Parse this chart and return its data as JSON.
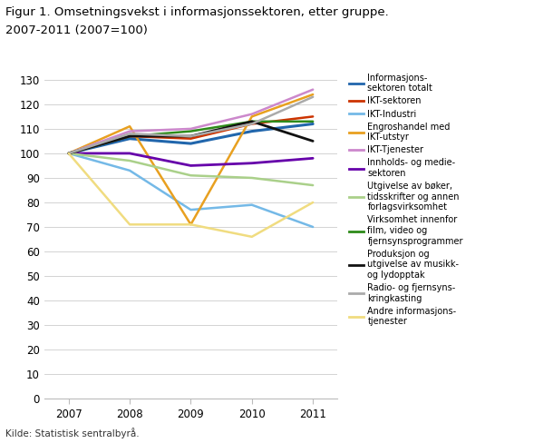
{
  "title_line1": "Figur 1. Omsetningsvekst i informasjonssektoren, etter gruppe.",
  "title_line2": "2007-2011 (2007=100)",
  "years": [
    2007,
    2008,
    2009,
    2010,
    2011
  ],
  "ylim": [
    0,
    130
  ],
  "yticks": [
    0,
    10,
    20,
    30,
    40,
    50,
    60,
    70,
    80,
    90,
    100,
    110,
    120,
    130
  ],
  "source": "Kilde: Statistisk sentralbyrå.",
  "series": [
    {
      "label": "Informasjons-\nsektoren totalt",
      "color": "#2166ac",
      "values": [
        100,
        106,
        104,
        109,
        112
      ],
      "linewidth": 2.2
    },
    {
      "label": "IKT-sektoren",
      "color": "#cc3300",
      "values": [
        100,
        107,
        106,
        112,
        115
      ],
      "linewidth": 1.8
    },
    {
      "label": "IKT-Industri",
      "color": "#74b9e7",
      "values": [
        100,
        93,
        77,
        79,
        70
      ],
      "linewidth": 1.8
    },
    {
      "label": "Engroshandel med\nIKT-utstyr",
      "color": "#e8a020",
      "values": [
        100,
        111,
        71,
        115,
        124
      ],
      "linewidth": 1.8
    },
    {
      "label": "IKT-Tjenester",
      "color": "#cc88cc",
      "values": [
        100,
        109,
        110,
        116,
        126
      ],
      "linewidth": 1.8
    },
    {
      "label": "Innholds- og medie-\nsektoren",
      "color": "#6600aa",
      "values": [
        100,
        100,
        95,
        96,
        98
      ],
      "linewidth": 2.0
    },
    {
      "label": "Utgivelse av bøker,\ntidsskrifter og annen\nforlagsvirksomhet",
      "color": "#aad08a",
      "values": [
        100,
        97,
        91,
        90,
        87
      ],
      "linewidth": 1.8
    },
    {
      "label": "Virksomhet innenfor\nfilm, video og\nfjernsynsprogrammer",
      "color": "#2e8b1a",
      "values": [
        100,
        107,
        109,
        113,
        113
      ],
      "linewidth": 1.8
    },
    {
      "label": "Produksjon og\nutgivelse av musikk-\nog lydopptak",
      "color": "#111111",
      "values": [
        100,
        107,
        107,
        113,
        105
      ],
      "linewidth": 2.0
    },
    {
      "label": "Radio- og fjernsyns-\nkringkasting",
      "color": "#aaaaaa",
      "values": [
        100,
        108,
        107,
        112,
        123
      ],
      "linewidth": 1.8
    },
    {
      "label": "Andre informasjons-\ntjenester",
      "color": "#f0dc80",
      "values": [
        100,
        71,
        71,
        66,
        80
      ],
      "linewidth": 1.8
    }
  ]
}
